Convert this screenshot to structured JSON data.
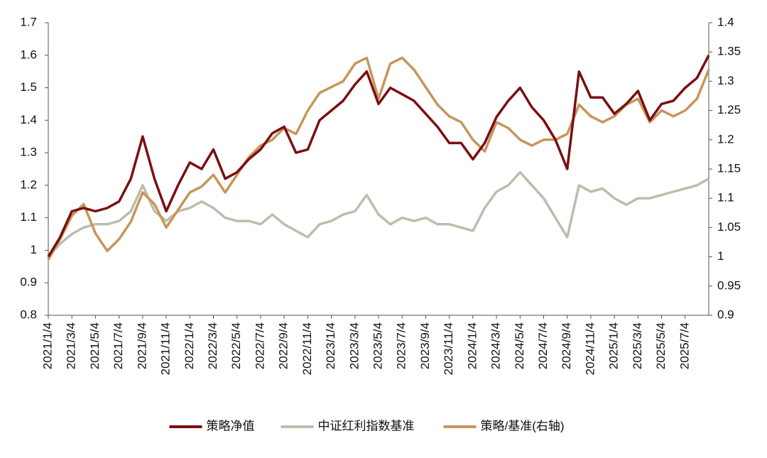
{
  "chart_data": {
    "type": "line",
    "x": [
      "2021/1/4",
      "2021/2/4",
      "2021/3/4",
      "2021/4/4",
      "2021/5/4",
      "2021/6/4",
      "2021/7/4",
      "2021/8/4",
      "2021/9/4",
      "2021/10/4",
      "2021/11/4",
      "2021/12/4",
      "2022/1/4",
      "2022/2/4",
      "2022/3/4",
      "2022/4/4",
      "2022/5/4",
      "2022/6/4",
      "2022/7/4",
      "2022/8/4",
      "2022/9/4",
      "2022/10/4",
      "2022/11/4",
      "2022/12/4",
      "2023/1/4",
      "2023/2/4",
      "2023/3/4",
      "2023/4/4",
      "2023/5/4",
      "2023/6/4",
      "2023/7/4",
      "2023/8/4",
      "2023/9/4",
      "2023/10/4",
      "2023/11/4",
      "2023/12/4",
      "2024/1/4",
      "2024/2/4",
      "2024/3/4",
      "2024/4/4",
      "2024/5/4",
      "2024/6/4",
      "2024/7/4",
      "2024/8/4",
      "2024/9/4",
      "2024/10/4",
      "2024/11/4",
      "2024/12/4",
      "2025/1/4",
      "2025/2/4",
      "2025/3/4",
      "2025/4/4",
      "2025/5/4",
      "2025/6/4",
      "2025/7/4",
      "2025/8/4",
      "2025/9/4"
    ],
    "series": [
      {
        "name": "策略净值",
        "color": "#7a0f12",
        "values": [
          0.98,
          1.04,
          1.12,
          1.13,
          1.12,
          1.13,
          1.15,
          1.22,
          1.35,
          1.22,
          1.12,
          1.2,
          1.27,
          1.25,
          1.31,
          1.22,
          1.24,
          1.28,
          1.31,
          1.36,
          1.38,
          1.3,
          1.31,
          1.4,
          1.43,
          1.46,
          1.51,
          1.55,
          1.45,
          1.5,
          1.48,
          1.46,
          1.42,
          1.38,
          1.33,
          1.33,
          1.28,
          1.33,
          1.41,
          1.46,
          1.5,
          1.44,
          1.4,
          1.34,
          1.25,
          1.55,
          1.47,
          1.47,
          1.42,
          1.45,
          1.49,
          1.4,
          1.45,
          1.46,
          1.5,
          1.53,
          1.6
        ]
      },
      {
        "name": "中证红利指数基准",
        "color": "#bdbdae",
        "values": [
          0.98,
          1.02,
          1.05,
          1.07,
          1.08,
          1.08,
          1.09,
          1.12,
          1.2,
          1.12,
          1.09,
          1.12,
          1.13,
          1.15,
          1.13,
          1.1,
          1.09,
          1.09,
          1.08,
          1.11,
          1.08,
          1.06,
          1.04,
          1.08,
          1.09,
          1.11,
          1.12,
          1.17,
          1.11,
          1.08,
          1.1,
          1.09,
          1.1,
          1.08,
          1.08,
          1.07,
          1.06,
          1.13,
          1.18,
          1.2,
          1.24,
          1.2,
          1.16,
          1.1,
          1.04,
          1.2,
          1.18,
          1.19,
          1.16,
          1.14,
          1.16,
          1.16,
          1.17,
          1.18,
          1.19,
          1.2,
          1.22
        ]
      },
      {
        "name": "策略/基准(右轴)",
        "color": "#c8955a",
        "axis": "y2",
        "values": [
          0.995,
          1.03,
          1.07,
          1.09,
          1.04,
          1.01,
          1.03,
          1.06,
          1.11,
          1.09,
          1.05,
          1.08,
          1.11,
          1.12,
          1.14,
          1.11,
          1.14,
          1.17,
          1.19,
          1.2,
          1.22,
          1.21,
          1.25,
          1.28,
          1.29,
          1.3,
          1.33,
          1.34,
          1.27,
          1.33,
          1.34,
          1.32,
          1.29,
          1.26,
          1.24,
          1.23,
          1.2,
          1.18,
          1.23,
          1.22,
          1.2,
          1.19,
          1.2,
          1.2,
          1.21,
          1.26,
          1.24,
          1.23,
          1.24,
          1.26,
          1.27,
          1.23,
          1.25,
          1.24,
          1.25,
          1.27,
          1.32
        ]
      }
    ],
    "xlim": [
      "2021/1/4",
      "2025/9/4"
    ],
    "xticks": [
      "2021/1/4",
      "2021/3/4",
      "2021/5/4",
      "2021/7/4",
      "2021/9/4",
      "2021/11/4",
      "2022/1/4",
      "2022/3/4",
      "2022/5/4",
      "2022/7/4",
      "2022/9/4",
      "2022/11/4",
      "2023/1/4",
      "2023/3/4",
      "2023/5/4",
      "2023/7/4",
      "2023/9/4",
      "2023/11/4",
      "2024/1/4",
      "2024/3/4",
      "2024/5/4",
      "2024/7/4",
      "2024/9/4",
      "2024/11/4",
      "2025/1/4",
      "2025/3/4",
      "2025/5/4",
      "2025/7/4"
    ],
    "ylim": [
      0.8,
      1.7
    ],
    "yticks": [
      0.8,
      0.9,
      1,
      1.1,
      1.2,
      1.3,
      1.4,
      1.5,
      1.6,
      1.7
    ],
    "y2lim": [
      0.9,
      1.4
    ],
    "y2ticks": [
      0.9,
      0.95,
      1,
      1.05,
      1.1,
      1.15,
      1.2,
      1.25,
      1.3,
      1.35,
      1.4
    ],
    "grid": false,
    "legend": "bottom"
  }
}
